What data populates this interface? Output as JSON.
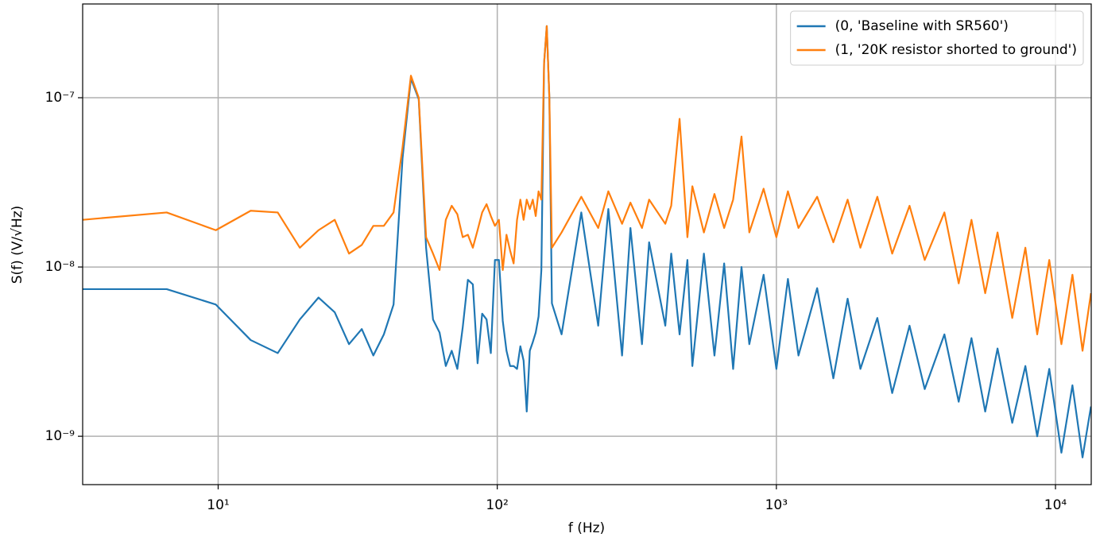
{
  "chart_data": {
    "type": "line",
    "xlabel": "f (Hz)",
    "ylabel": "S(f) (V/√Hz)",
    "xscale": "log",
    "yscale": "log",
    "grid": true,
    "legend": "upper right",
    "xlim": [
      3.27,
      13430
    ],
    "ylim": [
      5.18e-10,
      3.58e-07
    ],
    "xticks": [
      {
        "value": 10,
        "label": "10¹"
      },
      {
        "value": 100,
        "label": "10²"
      },
      {
        "value": 1000,
        "label": "10³"
      },
      {
        "value": 10000,
        "label": "10⁴"
      }
    ],
    "yticks": [
      {
        "value": 1e-09,
        "label": "10⁻⁹"
      },
      {
        "value": 1e-08,
        "label": "10⁻⁸"
      },
      {
        "value": 1e-07,
        "label": "10⁻⁷"
      }
    ],
    "x": [
      3.27,
      6.54,
      9.81,
      13.08,
      16.35,
      19.62,
      22.89,
      26.16,
      29.43,
      32.7,
      35.97,
      39.24,
      42.51,
      45.78,
      49.05,
      52.32,
      55.59,
      58.86,
      62.13,
      65.4,
      68.67,
      71.94,
      75.21,
      78.48,
      81.75,
      85.02,
      88.29,
      91.56,
      94.83,
      98.1,
      101.37,
      104.64,
      107.91,
      111.18,
      114.45,
      117.72,
      120.99,
      124.26,
      127.53,
      130.8,
      134.07,
      137.34,
      140.61,
      143.88,
      147.15,
      150.42,
      153.69,
      156.96,
      170,
      200,
      230,
      250,
      280,
      300,
      330,
      350,
      400,
      420,
      450,
      480,
      500,
      550,
      600,
      650,
      700,
      750,
      800,
      900,
      1000,
      1100,
      1200,
      1400,
      1600,
      1800,
      2000,
      2300,
      2600,
      3000,
      3400,
      4000,
      4500,
      5000,
      5600,
      6200,
      7000,
      7800,
      8600,
      9500,
      10500,
      11500,
      12500,
      13400
    ],
    "series": [
      {
        "name": "(0, 'Baseline with SR560')",
        "color": "#1f77b4",
        "values": [
          7.4e-09,
          7.4e-09,
          6e-09,
          3.7e-09,
          3.1e-09,
          4.9e-09,
          6.6e-09,
          5.4e-09,
          3.5e-09,
          4.3e-09,
          3e-09,
          4e-09,
          6e-09,
          4.4e-08,
          1.3e-07,
          9.8e-08,
          1.3e-08,
          4.9e-09,
          4.1e-09,
          2.6e-09,
          3.2e-09,
          2.5e-09,
          4.4e-09,
          8.4e-09,
          7.9e-09,
          2.7e-09,
          5.3e-09,
          4.9e-09,
          3.1e-09,
          1.1e-08,
          1.1e-08,
          4.8e-09,
          3.2e-09,
          2.6e-09,
          2.6e-09,
          2.5e-09,
          3.4e-09,
          2.8e-09,
          1.4e-09,
          3.2e-09,
          3.6e-09,
          4.1e-09,
          5.1e-09,
          9.6e-09,
          1.6e-07,
          2.65e-07,
          1e-07,
          6.1e-09,
          4e-09,
          2.1e-08,
          4.5e-09,
          2.2e-08,
          3e-09,
          1.7e-08,
          3.5e-09,
          1.4e-08,
          4.5e-09,
          1.2e-08,
          4e-09,
          1.1e-08,
          2.6e-09,
          1.2e-08,
          3e-09,
          1.05e-08,
          2.5e-09,
          1e-08,
          3.5e-09,
          9e-09,
          2.5e-09,
          8.5e-09,
          3e-09,
          7.5e-09,
          2.2e-09,
          6.5e-09,
          2.5e-09,
          5e-09,
          1.8e-09,
          4.5e-09,
          1.9e-09,
          4e-09,
          1.6e-09,
          3.8e-09,
          1.4e-09,
          3.3e-09,
          1.2e-09,
          2.6e-09,
          1e-09,
          2.5e-09,
          8e-10,
          2e-09,
          7.5e-10,
          1.5e-09
        ]
      },
      {
        "name": "(1, '20K resistor shorted to ground')",
        "color": "#ff7f0e",
        "values": [
          1.9e-08,
          2.1e-08,
          1.65e-08,
          2.15e-08,
          2.1e-08,
          1.3e-08,
          1.65e-08,
          1.9e-08,
          1.2e-08,
          1.35e-08,
          1.75e-08,
          1.75e-08,
          2.1e-08,
          5.1e-08,
          1.35e-07,
          1e-07,
          1.5e-08,
          1.2e-08,
          9.6e-09,
          1.9e-08,
          2.3e-08,
          2.05e-08,
          1.5e-08,
          1.55e-08,
          1.3e-08,
          1.65e-08,
          2.1e-08,
          2.35e-08,
          2e-08,
          1.75e-08,
          1.9e-08,
          9.6e-09,
          1.55e-08,
          1.25e-08,
          1.05e-08,
          1.9e-08,
          2.5e-08,
          1.9e-08,
          2.5e-08,
          2.2e-08,
          2.5e-08,
          2e-08,
          2.8e-08,
          2.5e-08,
          1.6e-07,
          2.65e-07,
          1e-07,
          1.3e-08,
          1.6e-08,
          2.6e-08,
          1.7e-08,
          2.8e-08,
          1.8e-08,
          2.4e-08,
          1.7e-08,
          2.5e-08,
          1.8e-08,
          2.3e-08,
          7.5e-08,
          1.5e-08,
          3e-08,
          1.6e-08,
          2.7e-08,
          1.7e-08,
          2.5e-08,
          5.9e-08,
          1.6e-08,
          2.9e-08,
          1.5e-08,
          2.8e-08,
          1.7e-08,
          2.6e-08,
          1.4e-08,
          2.5e-08,
          1.3e-08,
          2.6e-08,
          1.2e-08,
          2.3e-08,
          1.1e-08,
          2.1e-08,
          8e-09,
          1.9e-08,
          7e-09,
          1.6e-08,
          5e-09,
          1.3e-08,
          4e-09,
          1.1e-08,
          3.5e-09,
          9e-09,
          3.2e-09,
          7e-09
        ]
      }
    ]
  }
}
